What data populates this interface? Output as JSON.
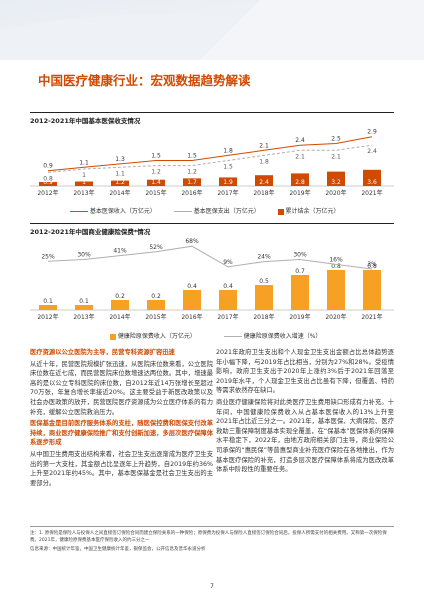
{
  "page_title": "中国医疗健康行业：宏观数据趋势解读",
  "chart1_title": "2012-2021年中国基本医保收支情况",
  "chart2_title": "2012-2021年中国商业健康险保费*情况",
  "colors": {
    "accent": "#d04a02",
    "bar1": "#d04a02",
    "bar2": "#f6a124",
    "line1": "#d04a02",
    "line2": "#b0b0b0"
  },
  "chart_data": [
    {
      "type": "bar",
      "title": "2012-2021年中国基本医保收支情况",
      "categories": [
        "2012年",
        "2013年",
        "2014年",
        "2015年",
        "2016年",
        "2017年",
        "2018年",
        "2019年",
        "2020年",
        "2021年"
      ],
      "series": [
        {
          "name": "累计结余（万亿元）",
          "kind": "bar",
          "values": [
            0.9,
            1.0,
            1.2,
            1.4,
            1.7,
            1.9,
            2.4,
            2.8,
            3.2,
            3.6
          ]
        },
        {
          "name": "基本医保收入（万亿元）",
          "kind": "line",
          "values": [
            0.9,
            1.1,
            1.3,
            1.5,
            1.5,
            1.8,
            2.1,
            2.4,
            2.5,
            2.9
          ]
        },
        {
          "name": "基本医保支出（万亿元）",
          "kind": "line",
          "values": [
            0.8,
            1.0,
            1.1,
            1.2,
            1.2,
            1.5,
            1.8,
            2.1,
            2.1,
            2.4
          ]
        }
      ]
    },
    {
      "type": "bar",
      "title": "2012-2021年中国商业健康险保费*情况",
      "categories": [
        "2012年",
        "2013年",
        "2014年",
        "2015年",
        "2016年",
        "2017年",
        "2018年",
        "2019年",
        "2020年",
        "2021年"
      ],
      "series": [
        {
          "name": "健康险原保费收入（万亿元）",
          "kind": "bar",
          "values": [
            0.1,
            0.1,
            0.2,
            0.2,
            0.4,
            0.4,
            0.5,
            0.7,
            0.8,
            0.8
          ]
        },
        {
          "name": "健康险原保费收入增速（%）",
          "kind": "line",
          "values": [
            "25%",
            "30%",
            "41%",
            "52%",
            "68%",
            "9%",
            "24%",
            "30%",
            "16%",
            "3%"
          ]
        }
      ]
    }
  ],
  "left_column": {
    "heading1": "医疗资源以公立医院为主导，民营专科资源扩容迅速",
    "para1": "从近十年，民营医院规模扩张迅速，从医院床位数来看，公立医院床位数在近七成，而民营医院床位数增速达两位数。其中，增速最高的是以公立专科医院的床位数，自2012年近14万张增长至超过70万张，年复合增长率接近20%。这主要受益于新医改政策以及社会办医政策的放开，民营医院医疗资源成为公立医疗体系的有力补充，缓解公立医院救治压力。",
    "heading2": "医保基金是目前医疗服务体系的支柱，随医保控费和医保支付改革持续，商业医疗健康保险推广和支付创新加速，多层次医疗保障体系逐步形成",
    "para2": "从中国卫生费用支出结构来看，社会卫生支出逐渐成为医疗卫生支出的第一大支柱，其金额占比呈逐年上升趋势，自2019年约36%上升至2021年约45%。其中，基本医保基金是社会卫生支出的主要部分。"
  },
  "right_column": {
    "para1": "2021年政府卫生支出和个人现金卫生支出金额占比总体趋势逐年小幅下降，与2019年占比相当，分别为27%和28%。受疫情影响，政府卫生支出于2020年上涨约3%后于2021年回落至2019年水平，个人现金卫生支出占比虽有下降，但覆盖、特药等需求依然存在缺口。",
    "para2": "商业医疗健康保险将对此类医疗卫生费用缺口形成有力补充。十年间，中国健康险保费收入从占基本医保收入的13%上升至2021年占比近三分之一。2021年，基本医保、大病保险、医疗救助三重保障制度基本实现全覆盖，在“保基本”医保体系的保障水平稳定下，2022年，由地方政府相关部门主导，商业保险公司承保的“惠民保”等普惠型商业补充医疗保险在各地推出，作为基本医疗保险的补充，打造多层次医疗保障体系将成为医改改革体系中阶段性的重要任务。"
  },
  "footer": {
    "note": "注：1. 原保险是保险人与投保人之间直接签订保险合同而建立保险关系的一种保险；原保费为投保人与保险人直接签订保险合同后，投保人所需支付的相关费用。又称第一次保险保费。2021年，健康险原保费基本医疗保险收入的约三分之一",
    "source": "信息来源：中国统计年鉴，中国卫生健康统计年鉴，银保监会，公开信息及普华永道分析"
  },
  "page_number": "7"
}
